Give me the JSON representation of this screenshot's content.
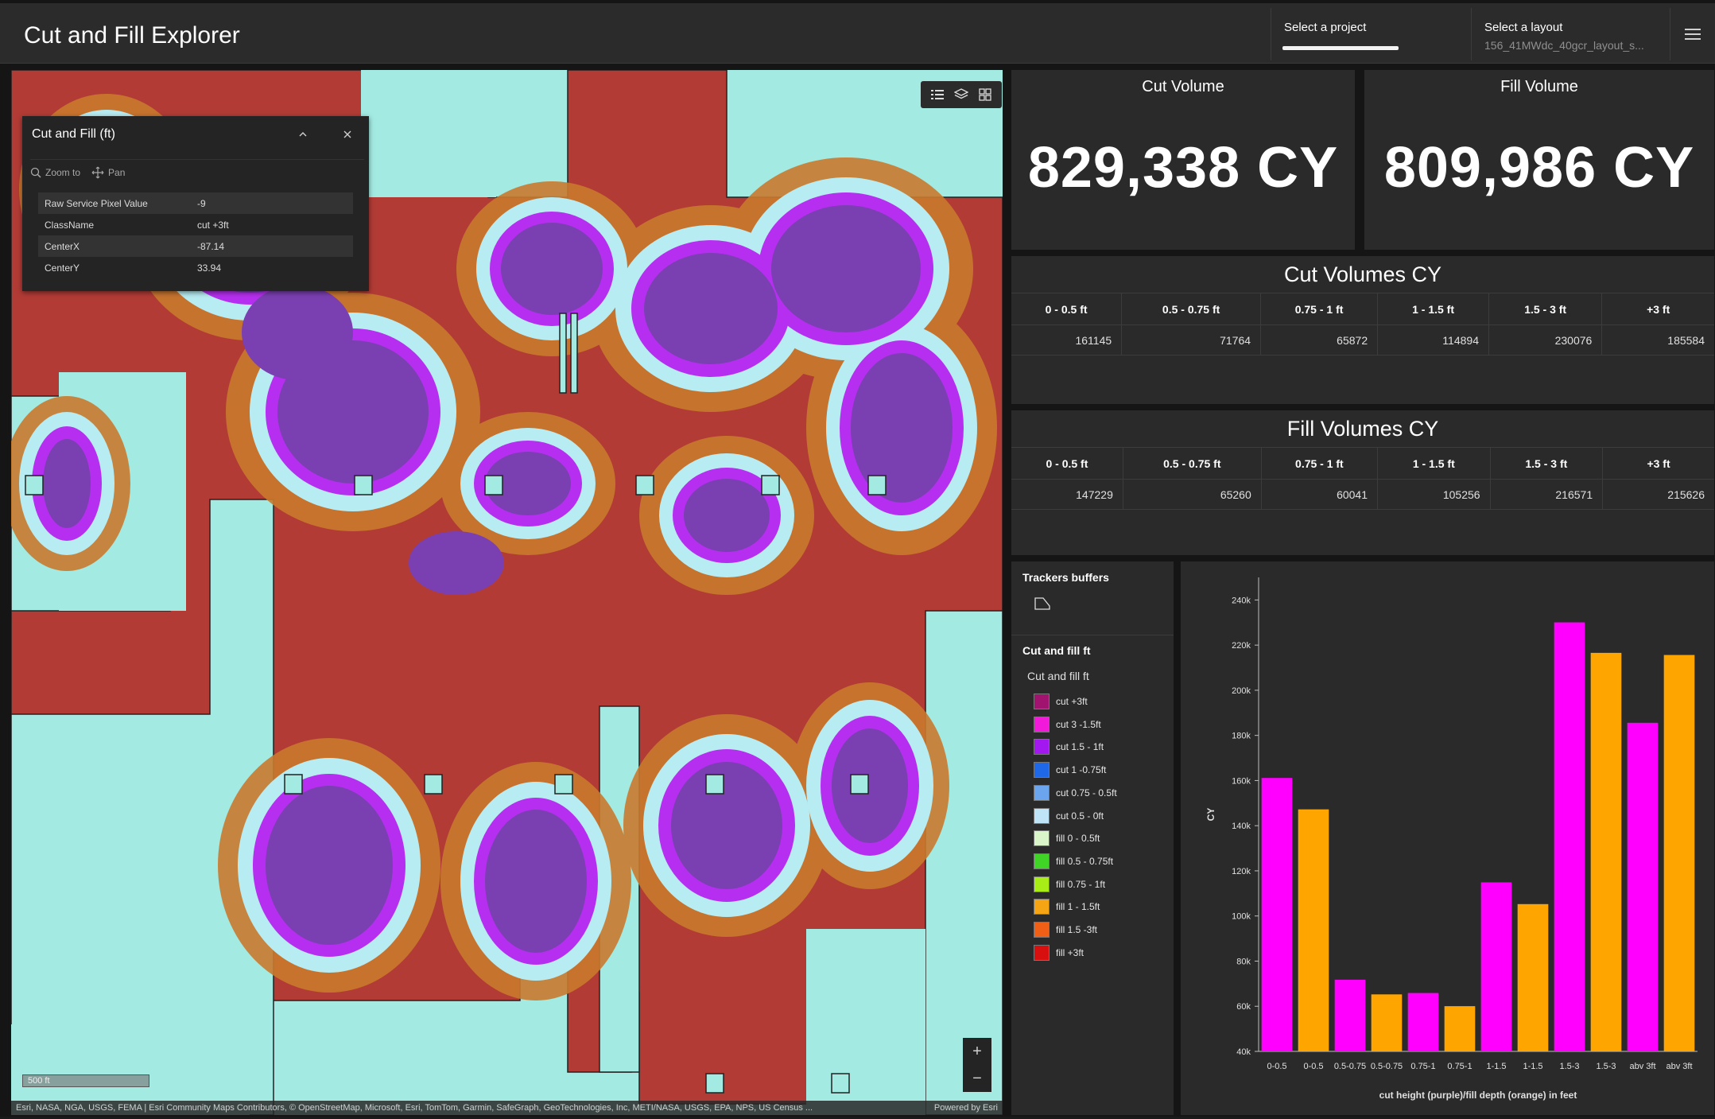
{
  "header": {
    "title": "Cut and Fill Explorer",
    "project_label": "Select a project",
    "project_value": "",
    "layout_label": "Select a layout",
    "layout_value": "156_41MWdc_40gcr_layout_s...",
    "menu_icon": "hamburger-menu-icon"
  },
  "map": {
    "toolbar_icons": [
      "list-icon",
      "layers-icon",
      "basemap-gallery-icon"
    ],
    "popup": {
      "title": "Cut and Fill (ft)",
      "zoom_to": "Zoom to",
      "pan": "Pan",
      "rows": [
        {
          "key": "Raw Service Pixel Value",
          "value": "-9"
        },
        {
          "key": "ClassName",
          "value": "cut +3ft"
        },
        {
          "key": "CenterX",
          "value": "-87.14"
        },
        {
          "key": "CenterY",
          "value": "33.94"
        }
      ]
    },
    "zoom_in": "+",
    "zoom_out": "−",
    "scale": "500 ft",
    "attribution": "Esri, NASA, NGA, USGS, FEMA | Esri Community Maps Contributors, © OpenStreetMap, Microsoft, Esri, TomTom, Garmin, SafeGraph, GeoTechnologies, Inc, METI/NASA, USGS, EPA, NPS, US Census ...",
    "powered_by": "Powered by Esri"
  },
  "cut_volume": {
    "title": "Cut Volume",
    "value": "829,338 CY"
  },
  "fill_volume": {
    "title": "Fill Volume",
    "value": "809,986 CY"
  },
  "cut_volumes_table": {
    "title": "Cut Volumes CY",
    "headers": [
      "0 - 0.5 ft",
      "0.5 - 0.75 ft",
      "0.75 - 1 ft",
      "1 - 1.5 ft",
      "1.5 - 3 ft",
      "+3 ft"
    ],
    "values": [
      "161145",
      "71764",
      "65872",
      "114894",
      "230076",
      "185584"
    ]
  },
  "fill_volumes_table": {
    "title": "Fill Volumes CY",
    "headers": [
      "0 - 0.5 ft",
      "0.5 - 0.75 ft",
      "0.75 - 1 ft",
      "1 - 1.5 ft",
      "1.5 - 3 ft",
      "+3 ft"
    ],
    "values": [
      "147229",
      "65260",
      "60041",
      "105256",
      "216571",
      "215626"
    ]
  },
  "legend": {
    "trackers_title": "Trackers buffers",
    "cutfill_title": "Cut and fill ft",
    "cutfill_sub": "Cut and fill ft",
    "items": [
      {
        "label": "cut +3ft",
        "color": "#a0136e"
      },
      {
        "label": "cut 3 -1.5ft",
        "color": "#f21ad9"
      },
      {
        "label": "cut 1.5 - 1ft",
        "color": "#a418f0"
      },
      {
        "label": "cut 1 -0.75ft",
        "color": "#1f68e8"
      },
      {
        "label": "cut 0.75 - 0.5ft",
        "color": "#6aa5ee"
      },
      {
        "label": "cut 0.5 - 0ft",
        "color": "#bfe3f7"
      },
      {
        "label": "fill 0 - 0.5ft",
        "color": "#d9f5c9"
      },
      {
        "label": "fill 0.5 - 0.75ft",
        "color": "#3fd426"
      },
      {
        "label": "fill 0.75 - 1ft",
        "color": "#a8ee16"
      },
      {
        "label": "fill 1 - 1.5ft",
        "color": "#f5a413"
      },
      {
        "label": "fill 1.5 -3ft",
        "color": "#ef5f16"
      },
      {
        "label": "fill +3ft",
        "color": "#d80f0f"
      }
    ]
  },
  "chart_data": {
    "type": "bar",
    "categories": [
      "0-0.5",
      "0-0.5",
      "0.5-0.75",
      "0.5-0.75",
      "0.75-1",
      "0.75-1",
      "1-1.5",
      "1-1.5",
      "1.5-3",
      "1.5-3",
      "abv 3ft",
      "abv 3ft"
    ],
    "values": [
      161145,
      147229,
      71764,
      65260,
      65872,
      60041,
      114894,
      105256,
      230076,
      216571,
      185584,
      215626
    ],
    "bar_colors": [
      "#ff00ff",
      "#ffa500",
      "#ff00ff",
      "#ffa500",
      "#ff00ff",
      "#ffa500",
      "#ff00ff",
      "#ffa500",
      "#ff00ff",
      "#ffa500",
      "#ff00ff",
      "#ffa500"
    ],
    "ylabel": "CY",
    "xlabel": "cut height (purple)/fill depth (orange) in feet",
    "ylim": [
      40000,
      250000
    ],
    "yticks": [
      40000,
      60000,
      80000,
      100000,
      120000,
      140000,
      160000,
      180000,
      200000,
      220000,
      240000
    ],
    "ytick_labels": [
      "40k",
      "60k",
      "80k",
      "100k",
      "120k",
      "140k",
      "160k",
      "180k",
      "200k",
      "220k",
      "240k"
    ],
    "grid": false
  }
}
